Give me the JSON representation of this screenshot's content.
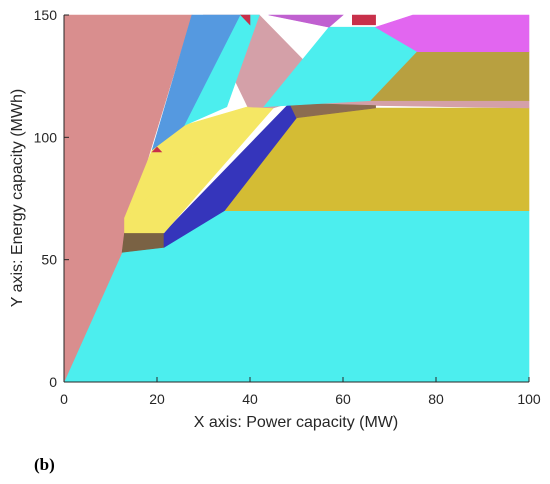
{
  "panel_label": "(b)",
  "chart_data": {
    "type": "area",
    "xlabel": "X axis: Power capacity (MW)",
    "ylabel": "Y axis: Energy capacity (MWh)",
    "xlim": [
      0,
      100
    ],
    "ylim": [
      0,
      150
    ],
    "xticks": [
      0,
      20,
      40,
      60,
      80,
      100
    ],
    "yticks": [
      0,
      50,
      100,
      150
    ],
    "grid": false,
    "regions": [
      {
        "color": "#4ceeee",
        "points": [
          [
            0,
            0
          ],
          [
            100,
            0
          ],
          [
            100,
            70
          ],
          [
            34.5,
            70
          ],
          [
            21.5,
            55
          ],
          [
            12.5,
            53
          ]
        ]
      },
      {
        "color": "#d98e8e",
        "points": [
          [
            0,
            0
          ],
          [
            12.5,
            53
          ],
          [
            13,
            60
          ],
          [
            27.5,
            150
          ],
          [
            0,
            150
          ]
        ]
      },
      {
        "color": "#d4bc34",
        "points": [
          [
            34.5,
            70
          ],
          [
            100,
            70
          ],
          [
            100,
            112
          ],
          [
            67,
            112
          ],
          [
            50,
            108
          ]
        ]
      },
      {
        "color": "#7a6244",
        "points": [
          [
            12.5,
            53
          ],
          [
            21.5,
            55
          ],
          [
            21.5,
            61
          ],
          [
            13,
            61
          ]
        ]
      },
      {
        "color": "#3535bb",
        "points": [
          [
            21.5,
            55
          ],
          [
            34.5,
            70
          ],
          [
            50,
            108
          ],
          [
            48.5,
            114
          ],
          [
            21.5,
            61
          ]
        ]
      },
      {
        "color": "#f5e764",
        "points": [
          [
            13,
            61
          ],
          [
            21.5,
            61
          ],
          [
            45,
            112
          ],
          [
            39.5,
            112.5
          ],
          [
            13,
            67
          ]
        ]
      },
      {
        "color": "#d4a0a8",
        "points": [
          [
            39.5,
            112.5
          ],
          [
            45,
            112
          ],
          [
            48.5,
            114
          ],
          [
            67,
            113
          ],
          [
            100,
            112
          ],
          [
            100,
            115
          ],
          [
            65,
            115
          ],
          [
            60,
            115
          ],
          [
            42,
            150
          ],
          [
            30,
            150
          ]
        ]
      },
      {
        "color": "#8c6c50",
        "points": [
          [
            48.5,
            114
          ],
          [
            50,
            108
          ],
          [
            67,
            112
          ],
          [
            67,
            113
          ]
        ]
      },
      {
        "color": "#f5e764",
        "points": [
          [
            13,
            67
          ],
          [
            19,
            95
          ],
          [
            26,
            105
          ],
          [
            39.5,
            112.5
          ]
        ]
      },
      {
        "color": "#5599e0",
        "points": [
          [
            19,
            95
          ],
          [
            27.5,
            150
          ],
          [
            38,
            150
          ],
          [
            26,
            105
          ]
        ]
      },
      {
        "color": "#4ceeee",
        "points": [
          [
            26,
            105
          ],
          [
            38,
            150
          ],
          [
            42,
            150
          ],
          [
            35,
            112.5
          ]
        ]
      },
      {
        "color": "#4ceeee",
        "points": [
          [
            43,
            112.5
          ],
          [
            57,
            145
          ],
          [
            67,
            145
          ],
          [
            76,
            135
          ],
          [
            66,
            115
          ]
        ]
      },
      {
        "color": "#b8a040",
        "points": [
          [
            66,
            115
          ],
          [
            76,
            135
          ],
          [
            100,
            135
          ],
          [
            100,
            115
          ]
        ]
      },
      {
        "color": "#e266f0",
        "points": [
          [
            67,
            145
          ],
          [
            75,
            150
          ],
          [
            100,
            150
          ],
          [
            100,
            135
          ],
          [
            76,
            135
          ]
        ]
      },
      {
        "color": "#c060d0",
        "points": [
          [
            44,
            150
          ],
          [
            57,
            145
          ],
          [
            60,
            150
          ]
        ]
      },
      {
        "color": "#c8304a",
        "points": [
          [
            19,
            94
          ],
          [
            21,
            94
          ],
          [
            20,
            96
          ]
        ]
      },
      {
        "color": "#c8304a",
        "points": [
          [
            38,
            150
          ],
          [
            40,
            146
          ],
          [
            40,
            150
          ]
        ]
      },
      {
        "color": "#c8304a",
        "points": [
          [
            62,
            146
          ],
          [
            67,
            146
          ],
          [
            67,
            150
          ],
          [
            62,
            150
          ]
        ]
      }
    ]
  }
}
